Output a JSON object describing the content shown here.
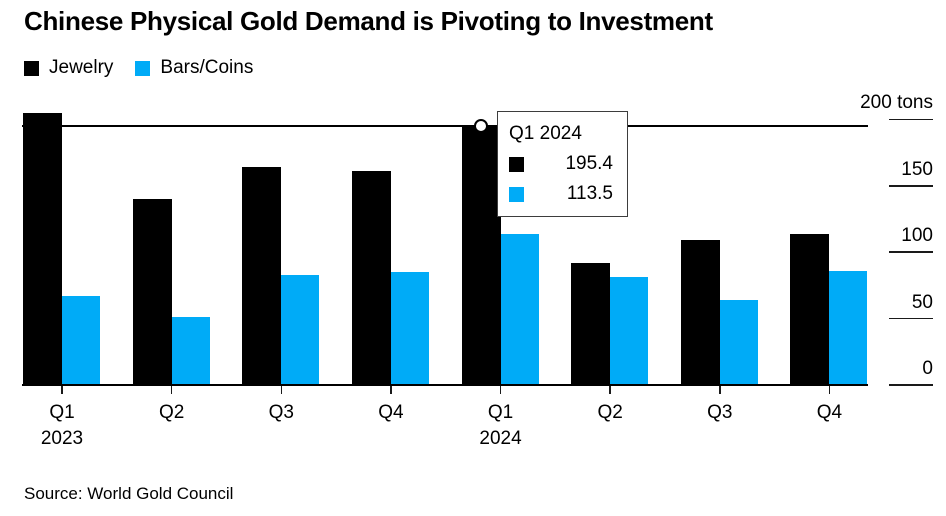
{
  "title": "Chinese Physical Gold Demand is Pivoting to Investment",
  "source": "Source: World Gold Council",
  "colors": {
    "jewelry": "#000000",
    "bars_coins": "#00abf7",
    "background": "#ffffff",
    "axis": "#1a1a1a",
    "tooltip_border": "#3d3d3d"
  },
  "legend": {
    "items": [
      {
        "label": "Jewelry",
        "color": "#000000"
      },
      {
        "label": "Bars/Coins",
        "color": "#00abf7"
      }
    ]
  },
  "tooltip": {
    "title": "Q1 2024",
    "rows": [
      {
        "series": "Jewelry",
        "color": "#000000",
        "value": "195.4"
      },
      {
        "series": "Bars/Coins",
        "color": "#00abf7",
        "value": "113.5"
      }
    ]
  },
  "chart_data": {
    "type": "bar",
    "title": "Chinese Physical Gold Demand is Pivoting to Investment",
    "categories": [
      "Q1 2023",
      "Q2 2023",
      "Q3 2023",
      "Q4 2023",
      "Q1 2024",
      "Q2 2024",
      "Q3 2024",
      "Q4 2024"
    ],
    "x_tick_labels": [
      "Q1",
      "Q2",
      "Q3",
      "Q4",
      "Q1",
      "Q2",
      "Q3",
      "Q4"
    ],
    "year_labels": [
      {
        "group_index": 0,
        "text": "2023"
      },
      {
        "group_index": 4,
        "text": "2024"
      }
    ],
    "series": [
      {
        "name": "Jewelry",
        "color": "#000000",
        "values": [
          205,
          140,
          164,
          161,
          195.4,
          92,
          109,
          114
        ]
      },
      {
        "name": "Bars/Coins",
        "color": "#00abf7",
        "values": [
          67,
          51,
          83,
          85,
          113.5,
          81,
          64,
          86
        ]
      }
    ],
    "ylabel": "tons",
    "ylim": [
      0,
      200
    ],
    "y_ticks": [
      {
        "value": 0,
        "label": "0"
      },
      {
        "value": 50,
        "label": "50"
      },
      {
        "value": 100,
        "label": "100"
      },
      {
        "value": 150,
        "label": "150"
      },
      {
        "value": 200,
        "label": "200 tons"
      }
    ],
    "grid": false,
    "legend_position": "top-left",
    "axis_side": "right",
    "highlight": {
      "category": "Q1 2024",
      "group_index": 4,
      "tracking_value": 195.4,
      "values": {
        "Jewelry": 195.4,
        "Bars/Coins": 113.5
      }
    }
  }
}
